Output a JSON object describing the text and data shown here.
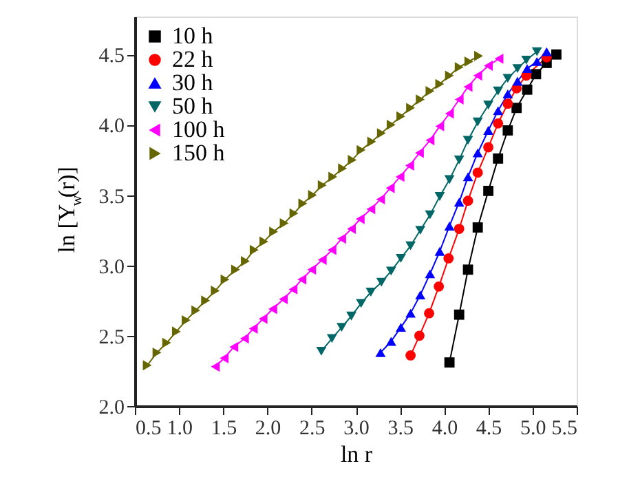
{
  "chart_data": {
    "type": "line",
    "xlabel": "ln r",
    "ylabel": "ln [Y$_{w}$(r)]",
    "xlim": [
      0.5,
      5.5
    ],
    "ylim": [
      2.0,
      4.77
    ],
    "xticks": [
      0.5,
      {
        "value": 1,
        "label": "1.0"
      },
      1.5,
      {
        "value": 2,
        "label": "2.0"
      },
      2.5,
      {
        "value": 3,
        "label": "3.0"
      },
      3.5,
      {
        "value": 4,
        "label": "4.0"
      },
      4.5,
      {
        "value": 5,
        "label": "5.0"
      },
      5.5
    ],
    "yticks": [
      {
        "value": 2,
        "label": "2.0"
      },
      2.5,
      {
        "value": 3,
        "label": "3.0"
      },
      3.5,
      {
        "value": 4,
        "label": "4.0"
      },
      4.5
    ],
    "grid": false,
    "legend": "top left",
    "line_style": "solid",
    "series": [
      {
        "name": "10 h",
        "color": "#000000",
        "marker": "square",
        "x": [
          4.06,
          4.17,
          4.27,
          4.38,
          4.5,
          4.61,
          4.72,
          4.82,
          4.94,
          5.04,
          5.16,
          5.27
        ],
        "values": [
          2.31,
          2.65,
          2.97,
          3.27,
          3.53,
          3.76,
          3.96,
          4.12,
          4.25,
          4.36,
          4.44,
          4.5
        ]
      },
      {
        "name": "22 h",
        "color": "#ff0000",
        "marker": "circle",
        "x": [
          3.62,
          3.72,
          3.83,
          3.94,
          4.05,
          4.17,
          4.27,
          4.38,
          4.5,
          4.61,
          4.72,
          4.82,
          4.93,
          5.04,
          5.16
        ],
        "values": [
          2.36,
          2.5,
          2.66,
          2.85,
          3.05,
          3.26,
          3.46,
          3.66,
          3.84,
          4.01,
          4.15,
          4.26,
          4.35,
          null,
          4.48
        ]
      },
      {
        "name": "30 h",
        "color": "#0000ff",
        "marker": "triangle",
        "x": [
          3.28,
          3.4,
          3.51,
          3.62,
          3.73,
          3.84,
          3.95,
          4.06,
          4.17,
          4.27,
          4.38,
          4.5,
          4.61,
          4.72,
          4.83,
          4.94,
          5.05,
          5.16
        ],
        "values": [
          2.38,
          2.46,
          2.56,
          2.66,
          2.79,
          2.94,
          3.1,
          3.28,
          3.45,
          3.63,
          3.8,
          3.96,
          4.1,
          4.22,
          4.31,
          4.4,
          4.45,
          4.52
        ]
      },
      {
        "name": "50 h",
        "color": "#006666",
        "marker": "triangle-down",
        "x": [
          2.61,
          2.73,
          2.84,
          2.95,
          3.06,
          3.17,
          3.29,
          3.4,
          3.51,
          3.62,
          3.73,
          3.84,
          3.95,
          4.06,
          4.17,
          4.27,
          4.38,
          4.5,
          4.61,
          4.72,
          4.83,
          4.93,
          5.05
        ],
        "values": [
          2.39,
          2.48,
          2.56,
          2.64,
          2.73,
          2.81,
          2.88,
          2.96,
          3.05,
          3.14,
          3.25,
          3.36,
          3.49,
          3.61,
          3.75,
          3.89,
          4.02,
          4.14,
          4.24,
          4.33,
          4.4,
          4.46,
          4.52
        ]
      },
      {
        "name": "100 h",
        "color": "#ff00ff",
        "marker": "triangle-left",
        "x": [
          1.41,
          1.51,
          1.62,
          1.74,
          1.84,
          1.95,
          2.06,
          2.18,
          2.29,
          2.39,
          2.5,
          2.62,
          2.73,
          2.84,
          2.95,
          3.05,
          3.17,
          3.28,
          3.39,
          3.5,
          3.61,
          3.72,
          3.84,
          3.95,
          4.06,
          4.17,
          4.27,
          4.38,
          4.5,
          4.62
        ],
        "values": [
          2.28,
          2.34,
          2.42,
          2.48,
          2.55,
          2.62,
          2.69,
          2.76,
          2.83,
          2.9,
          2.97,
          3.04,
          3.11,
          3.19,
          3.26,
          3.33,
          3.4,
          3.47,
          3.55,
          3.63,
          3.71,
          3.8,
          3.89,
          3.99,
          4.08,
          4.18,
          4.27,
          4.35,
          4.42,
          4.47
        ]
      },
      {
        "name": "150 h",
        "color": "#666600",
        "marker": "triangle-right",
        "x": [
          0.64,
          0.75,
          0.86,
          0.97,
          1.08,
          1.19,
          1.3,
          1.41,
          1.52,
          1.64,
          1.75,
          1.85,
          1.96,
          2.07,
          2.19,
          2.3,
          2.4,
          2.51,
          2.62,
          2.74,
          2.85,
          2.96,
          3.06,
          3.18,
          3.29,
          3.4,
          3.51,
          3.62,
          3.73,
          3.84,
          3.95,
          4.06,
          4.17,
          4.28,
          4.39
        ],
        "values": [
          2.29,
          2.38,
          2.45,
          2.53,
          2.61,
          2.68,
          2.75,
          2.82,
          2.9,
          2.97,
          3.03,
          3.11,
          3.17,
          3.24,
          3.3,
          3.37,
          3.44,
          3.5,
          3.57,
          3.63,
          3.69,
          3.75,
          3.82,
          3.88,
          3.94,
          4.0,
          4.06,
          4.12,
          4.18,
          4.24,
          4.29,
          4.35,
          4.41,
          4.45,
          4.49
        ]
      }
    ]
  }
}
